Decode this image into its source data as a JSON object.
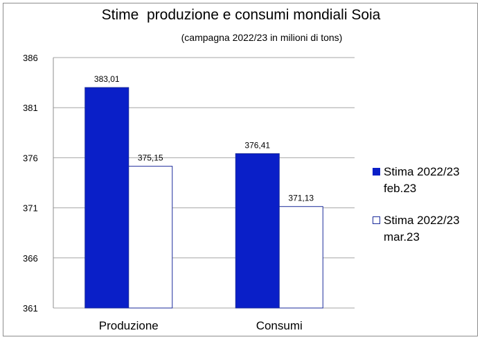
{
  "chart_data": {
    "type": "bar",
    "title": "Stime  produzione e consumi mondiali Soia",
    "subtitle": "(campagna 2022/23 in milioni di tons)",
    "categories": [
      "Produzione",
      "Consumi"
    ],
    "series": [
      {
        "name": "Stima 2022/23 feb.23",
        "values": [
          383.01,
          376.41
        ],
        "labels": [
          "383,01",
          "376,41"
        ],
        "color": "#0a1fc8"
      },
      {
        "name": "Stima 2022/23 mar.23",
        "values": [
          375.15,
          371.13
        ],
        "labels": [
          "375,15",
          "371,13"
        ],
        "color": "#ffffff"
      }
    ],
    "ylim": [
      361,
      386
    ],
    "yticks": [
      "386",
      "381",
      "376",
      "371",
      "366",
      "361"
    ],
    "ytick_values": [
      386,
      381,
      376,
      371,
      366,
      361
    ],
    "grid": true,
    "legend_position": "right",
    "bar_outline_color": "#1a2a9a"
  },
  "legend": {
    "item1": {
      "line1": "Stima 2022/23",
      "line2": "feb.23"
    },
    "item2": {
      "line1": "Stima 2022/23",
      "line2": "mar.23"
    }
  }
}
